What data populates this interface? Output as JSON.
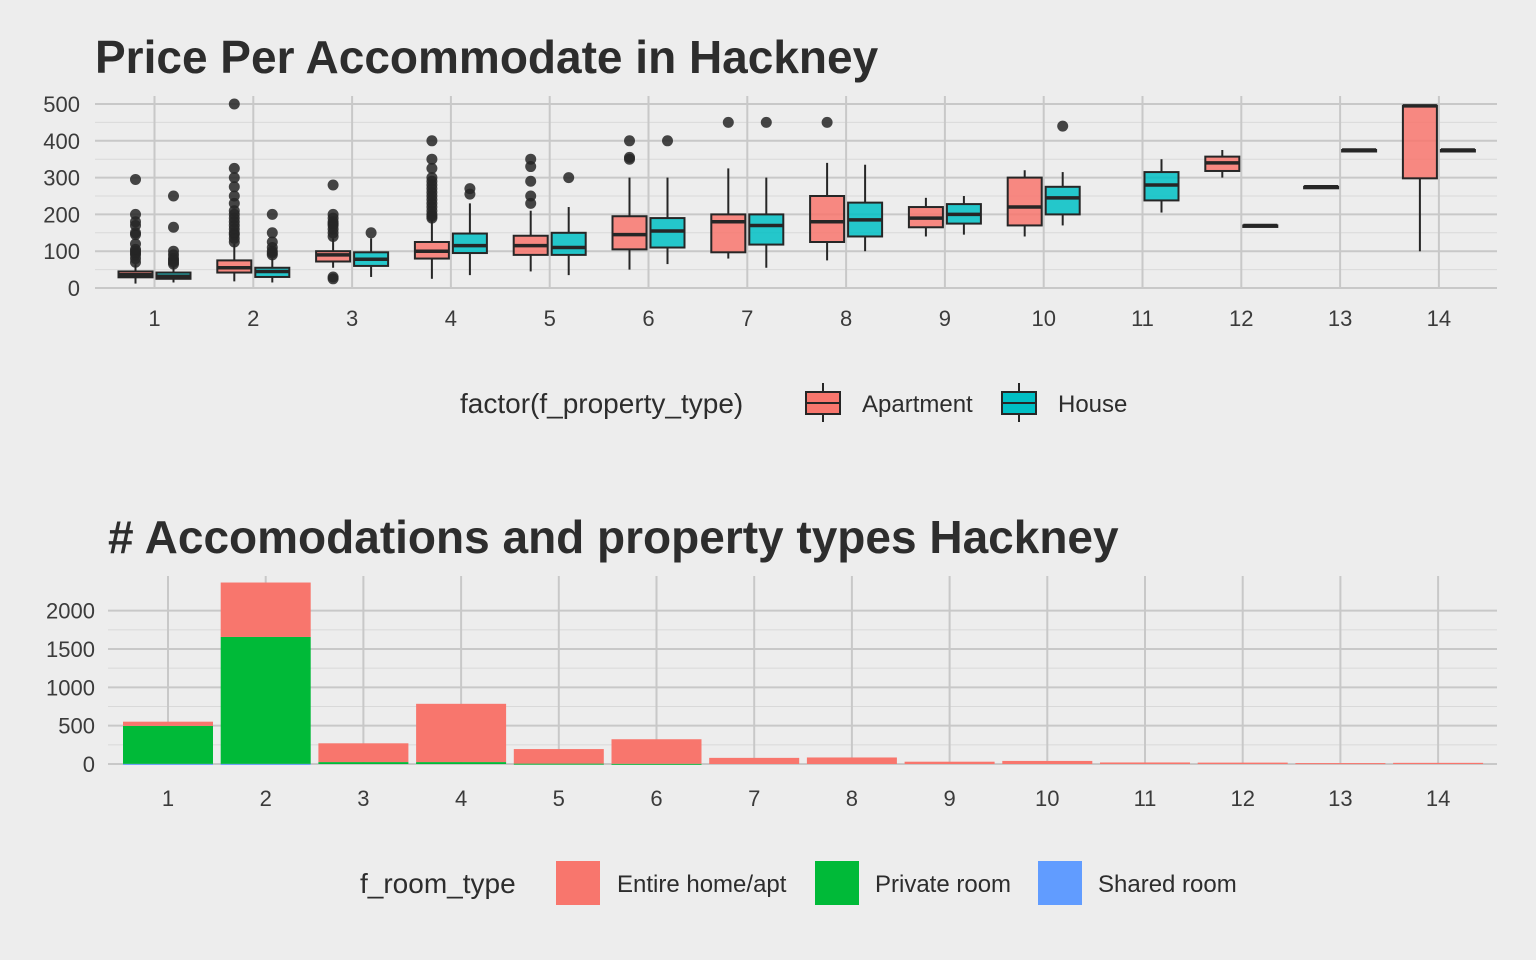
{
  "chart_data": [
    {
      "type": "box",
      "title": "Price Per Accommodate in Hackney",
      "xlabel": "",
      "ylabel": "",
      "categories": [
        "1",
        "2",
        "3",
        "4",
        "5",
        "6",
        "7",
        "8",
        "9",
        "10",
        "11",
        "12",
        "13",
        "14"
      ],
      "ylim": [
        0,
        500
      ],
      "yticks": [
        0,
        100,
        200,
        300,
        400,
        500
      ],
      "grid": true,
      "legend": {
        "title": "factor(f_property_type)",
        "position": "bottom"
      },
      "series": [
        {
          "name": "Apartment",
          "color": "#F8766D",
          "boxes": [
            {
              "x": "1",
              "whisker_low": 12,
              "q1": 29,
              "median": 36,
              "q3": 45,
              "whisker_high": 65,
              "outliers": [
                70,
                80,
                90,
                95,
                100,
                105,
                120,
                145,
                150,
                170,
                180,
                200,
                295
              ]
            },
            {
              "x": "2",
              "whisker_low": 18,
              "q1": 42,
              "median": 55,
              "q3": 75,
              "whisker_high": 120,
              "outliers": [
                125,
                135,
                145,
                150,
                160,
                170,
                180,
                190,
                200,
                210,
                230,
                250,
                275,
                300,
                325,
                500
              ]
            },
            {
              "x": "3",
              "whisker_low": 55,
              "q1": 72,
              "median": 90,
              "q3": 100,
              "whisker_high": 135,
              "outliers": [
                25,
                30,
                140,
                150,
                160,
                170,
                175,
                180,
                190,
                200,
                280
              ]
            },
            {
              "x": "4",
              "whisker_low": 25,
              "q1": 80,
              "median": 100,
              "q3": 125,
              "whisker_high": 185,
              "outliers": [
                190,
                195,
                200,
                210,
                220,
                230,
                240,
                250,
                260,
                270,
                280,
                290,
                300,
                325,
                350,
                400
              ]
            },
            {
              "x": "5",
              "whisker_low": 45,
              "q1": 90,
              "median": 115,
              "q3": 142,
              "whisker_high": 210,
              "outliers": [
                230,
                250,
                290,
                330,
                350
              ]
            },
            {
              "x": "6",
              "whisker_low": 50,
              "q1": 105,
              "median": 145,
              "q3": 195,
              "whisker_high": 300,
              "outliers": [
                350,
                355,
                400
              ]
            },
            {
              "x": "7",
              "whisker_low": 80,
              "q1": 97,
              "median": 180,
              "q3": 200,
              "whisker_high": 325,
              "outliers": [
                450
              ]
            },
            {
              "x": "8",
              "whisker_low": 75,
              "q1": 125,
              "median": 180,
              "q3": 250,
              "whisker_high": 340,
              "outliers": [
                450
              ]
            },
            {
              "x": "9",
              "whisker_low": 140,
              "q1": 165,
              "median": 190,
              "q3": 220,
              "whisker_high": 245,
              "outliers": []
            },
            {
              "x": "10",
              "whisker_low": 140,
              "q1": 170,
              "median": 220,
              "q3": 300,
              "whisker_high": 320,
              "outliers": []
            },
            {
              "x": "12",
              "whisker_low": 300,
              "q1": 318,
              "median": 340,
              "q3": 357,
              "whisker_high": 375,
              "outliers": []
            },
            {
              "x": "13",
              "whisker_low": 275,
              "q1": 275,
              "median": 275,
              "q3": 275,
              "whisker_high": 275,
              "outliers": []
            },
            {
              "x": "14",
              "whisker_low": 100,
              "q1": 298,
              "median": 495,
              "q3": 495,
              "whisker_high": 495,
              "outliers": []
            }
          ]
        },
        {
          "name": "House",
          "color": "#00BFC4",
          "boxes": [
            {
              "x": "1",
              "whisker_low": 15,
              "q1": 25,
              "median": 32,
              "q3": 42,
              "whisker_high": 60,
              "outliers": [
                65,
                70,
                75,
                80,
                90,
                100,
                165,
                250
              ]
            },
            {
              "x": "2",
              "whisker_low": 15,
              "q1": 30,
              "median": 45,
              "q3": 55,
              "whisker_high": 80,
              "outliers": [
                90,
                95,
                100,
                110,
                125,
                150,
                200
              ]
            },
            {
              "x": "3",
              "whisker_low": 30,
              "q1": 60,
              "median": 78,
              "q3": 97,
              "whisker_high": 135,
              "outliers": [
                150
              ]
            },
            {
              "x": "4",
              "whisker_low": 35,
              "q1": 95,
              "median": 115,
              "q3": 148,
              "whisker_high": 230,
              "outliers": [
                255,
                270
              ]
            },
            {
              "x": "5",
              "whisker_low": 35,
              "q1": 90,
              "median": 110,
              "q3": 150,
              "whisker_high": 220,
              "outliers": [
                300
              ]
            },
            {
              "x": "6",
              "whisker_low": 65,
              "q1": 110,
              "median": 155,
              "q3": 190,
              "whisker_high": 300,
              "outliers": [
                400
              ]
            },
            {
              "x": "7",
              "whisker_low": 55,
              "q1": 118,
              "median": 170,
              "q3": 200,
              "whisker_high": 300,
              "outliers": [
                450
              ]
            },
            {
              "x": "8",
              "whisker_low": 100,
              "q1": 140,
              "median": 185,
              "q3": 232,
              "whisker_high": 335,
              "outliers": []
            },
            {
              "x": "9",
              "whisker_low": 145,
              "q1": 175,
              "median": 200,
              "q3": 228,
              "whisker_high": 250,
              "outliers": []
            },
            {
              "x": "10",
              "whisker_low": 170,
              "q1": 200,
              "median": 245,
              "q3": 275,
              "whisker_high": 315,
              "outliers": [
                440
              ]
            },
            {
              "x": "11",
              "whisker_low": 205,
              "q1": 238,
              "median": 280,
              "q3": 315,
              "whisker_high": 350,
              "outliers": []
            },
            {
              "x": "12",
              "whisker_low": 170,
              "q1": 170,
              "median": 170,
              "q3": 170,
              "whisker_high": 170,
              "outliers": []
            },
            {
              "x": "13",
              "whisker_low": 375,
              "q1": 375,
              "median": 375,
              "q3": 375,
              "whisker_high": 375,
              "outliers": []
            },
            {
              "x": "14",
              "whisker_low": 375,
              "q1": 375,
              "median": 375,
              "q3": 375,
              "whisker_high": 375,
              "outliers": []
            }
          ]
        }
      ]
    },
    {
      "type": "bar",
      "stacked": true,
      "title": "# Accomodations and property types Hackney",
      "xlabel": "",
      "ylabel": "",
      "categories": [
        "1",
        "2",
        "3",
        "4",
        "5",
        "6",
        "7",
        "8",
        "9",
        "10",
        "11",
        "12",
        "13",
        "14"
      ],
      "ylim": [
        0,
        2400
      ],
      "yticks": [
        0,
        500,
        1000,
        1500,
        2000
      ],
      "grid": true,
      "legend": {
        "title": "f_room_type",
        "position": "bottom"
      },
      "series": [
        {
          "name": "Entire home/apt",
          "color": "#F8766D",
          "values": [
            55,
            710,
            245,
            760,
            190,
            320,
            80,
            85,
            30,
            40,
            20,
            18,
            12,
            15
          ]
        },
        {
          "name": "Private room",
          "color": "#00BA38",
          "values": [
            495,
            1655,
            25,
            25,
            5,
            3,
            0,
            0,
            0,
            0,
            0,
            0,
            0,
            0
          ]
        },
        {
          "name": "Shared room",
          "color": "#619CFF",
          "values": [
            2,
            2,
            0,
            0,
            0,
            0,
            0,
            0,
            0,
            0,
            0,
            0,
            0,
            0
          ]
        }
      ]
    }
  ]
}
